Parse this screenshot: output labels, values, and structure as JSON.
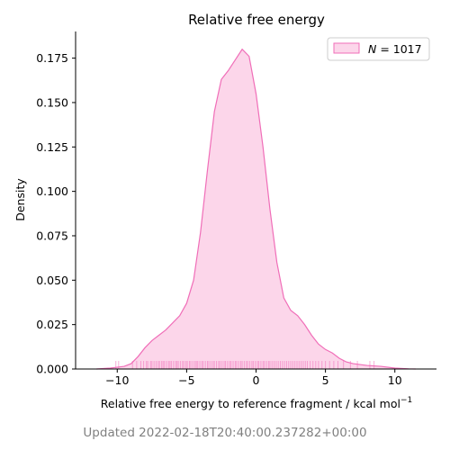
{
  "chart_data": {
    "type": "area",
    "title": "Relative free energy",
    "xlabel": "Relative free energy to reference fragment / kcal mol",
    "xlabel_exponent": "−1",
    "ylabel": "Density",
    "xlim": [
      -13,
      13
    ],
    "ylim": [
      0,
      0.19
    ],
    "x_ticks": [
      -10,
      -5,
      0,
      5,
      10
    ],
    "x_tick_labels": [
      "−10",
      "−5",
      "0",
      "5",
      "10"
    ],
    "y_ticks": [
      0.0,
      0.025,
      0.05,
      0.075,
      0.1,
      0.125,
      0.15,
      0.175
    ],
    "y_tick_labels": [
      "0.000",
      "0.025",
      "0.050",
      "0.075",
      "0.100",
      "0.125",
      "0.150",
      "0.175"
    ],
    "grid": false,
    "legend": {
      "position": "top-right",
      "label_prefix": "N",
      "label_eq": " = ",
      "label_value": "1017"
    },
    "colors": {
      "fill": "#fcd6ea",
      "line": "#f06eb8",
      "rug": "#f06eb8"
    },
    "series": [
      {
        "name": "N = 1017",
        "kde": [
          [
            -11.5,
            0.0
          ],
          [
            -10.5,
            0.0005
          ],
          [
            -9.5,
            0.0015
          ],
          [
            -9.0,
            0.003
          ],
          [
            -8.5,
            0.007
          ],
          [
            -8.0,
            0.012
          ],
          [
            -7.5,
            0.016
          ],
          [
            -7.0,
            0.019
          ],
          [
            -6.5,
            0.022
          ],
          [
            -6.0,
            0.026
          ],
          [
            -5.5,
            0.03
          ],
          [
            -5.0,
            0.037
          ],
          [
            -4.5,
            0.05
          ],
          [
            -4.0,
            0.077
          ],
          [
            -3.5,
            0.112
          ],
          [
            -3.0,
            0.145
          ],
          [
            -2.5,
            0.163
          ],
          [
            -2.0,
            0.168
          ],
          [
            -1.5,
            0.174
          ],
          [
            -1.0,
            0.18
          ],
          [
            -0.5,
            0.176
          ],
          [
            0.0,
            0.155
          ],
          [
            0.5,
            0.125
          ],
          [
            1.0,
            0.09
          ],
          [
            1.5,
            0.06
          ],
          [
            2.0,
            0.04
          ],
          [
            2.5,
            0.033
          ],
          [
            3.0,
            0.03
          ],
          [
            3.5,
            0.025
          ],
          [
            4.0,
            0.019
          ],
          [
            4.5,
            0.014
          ],
          [
            5.0,
            0.011
          ],
          [
            5.5,
            0.009
          ],
          [
            6.0,
            0.006
          ],
          [
            6.5,
            0.004
          ],
          [
            7.0,
            0.003
          ],
          [
            8.0,
            0.002
          ],
          [
            9.0,
            0.0015
          ],
          [
            10.0,
            0.0005
          ],
          [
            11.0,
            0.0001
          ],
          [
            11.5,
            0.0
          ]
        ]
      }
    ],
    "rug_x": [
      -10.1,
      -9.9,
      -8.9,
      -8.6,
      -8.3,
      -8.1,
      -7.9,
      -7.8,
      -7.6,
      -7.5,
      -7.35,
      -7.2,
      -7.05,
      -6.95,
      -6.8,
      -6.7,
      -6.6,
      -6.45,
      -6.3,
      -6.2,
      -6.1,
      -5.95,
      -5.8,
      -5.7,
      -5.6,
      -5.45,
      -5.3,
      -5.2,
      -5.05,
      -4.95,
      -4.8,
      -4.7,
      -4.55,
      -4.4,
      -4.3,
      -4.2,
      -4.05,
      -3.9,
      -3.8,
      -3.65,
      -3.5,
      -3.4,
      -3.25,
      -3.1,
      -3.0,
      -2.85,
      -2.7,
      -2.6,
      -2.45,
      -2.3,
      -2.2,
      -2.05,
      -1.9,
      -1.8,
      -1.65,
      -1.5,
      -1.4,
      -1.25,
      -1.1,
      -1.0,
      -0.85,
      -0.7,
      -0.6,
      -0.45,
      -0.3,
      -0.2,
      -0.05,
      0.1,
      0.2,
      0.35,
      0.5,
      0.6,
      0.75,
      0.9,
      1.0,
      1.15,
      1.3,
      1.45,
      1.6,
      1.75,
      1.9,
      2.05,
      2.2,
      2.35,
      2.5,
      2.65,
      2.8,
      2.95,
      3.1,
      3.25,
      3.4,
      3.55,
      3.7,
      3.9,
      4.1,
      4.3,
      4.5,
      4.75,
      5.0,
      5.3,
      5.6,
      5.9,
      6.3,
      6.8,
      7.3,
      8.2,
      8.5
    ]
  },
  "footer": {
    "updated": "Updated 2022-02-18T20:40:00.237282+00:00"
  }
}
